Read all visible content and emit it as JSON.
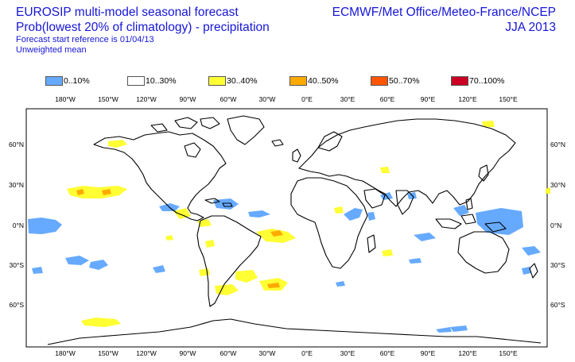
{
  "header": {
    "title_line1": "EUROSIP multi-model seasonal forecast",
    "title_line2": "Prob(lowest 20% of climatology) - precipitation",
    "subtitle_line1": "Forecast start reference is 01/04/13",
    "subtitle_line2": "Unweighted mean",
    "centres": "ECMWF/Met Office/Meteo-France/NCEP",
    "season": "JJA 2013"
  },
  "legend": [
    {
      "label": "0..10%",
      "color": "#66aaff"
    },
    {
      "label": "10..30%",
      "color": "#ffffff"
    },
    {
      "label": "30..40%",
      "color": "#ffff33"
    },
    {
      "label": "40..50%",
      "color": "#ffaa00"
    },
    {
      "label": "50..70%",
      "color": "#ff5500"
    },
    {
      "label": "70..100%",
      "color": "#cc0022"
    }
  ],
  "map": {
    "lon_labels": [
      "180°W",
      "150°W",
      "120°W",
      "90°W",
      "60°W",
      "30°W",
      "0°E",
      "30°E",
      "60°E",
      "90°E",
      "120°E",
      "150°E"
    ],
    "lat_labels": [
      "60°N",
      "30°N",
      "0°N",
      "30°S",
      "60°S"
    ],
    "colors": {
      "low": "#66aaff",
      "mid": "#ffff33",
      "high": "#ffaa00",
      "higher": "#ff5500",
      "coast": "#000000"
    }
  }
}
